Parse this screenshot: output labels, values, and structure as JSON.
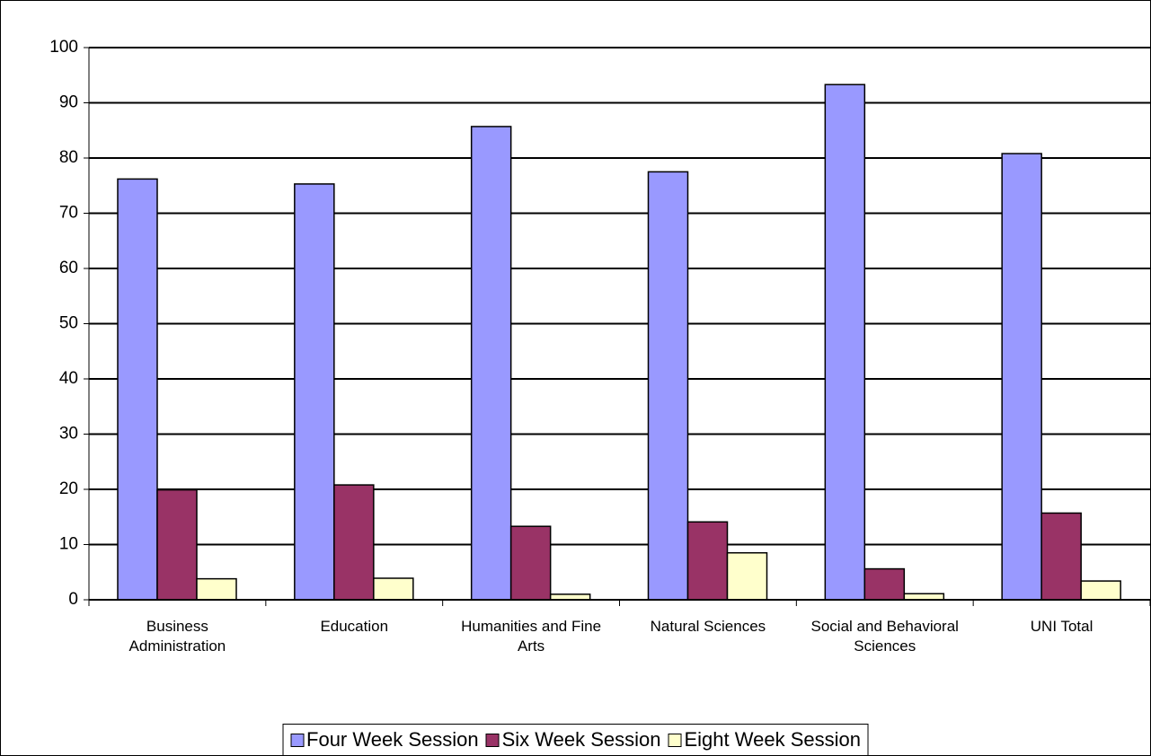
{
  "chart_data": {
    "type": "bar",
    "categories": [
      "Business Administration",
      "Education",
      "Humanities and Fine Arts",
      "Natural Sciences",
      "Social and Behavioral Sciences",
      "UNI Total"
    ],
    "series": [
      {
        "name": "Four Week Session",
        "color": "#9999ff",
        "values": [
          76.2,
          75.3,
          85.7,
          77.5,
          93.3,
          80.8
        ]
      },
      {
        "name": "Six Week Session",
        "color": "#993366",
        "values": [
          19.9,
          20.8,
          13.3,
          14.1,
          5.6,
          15.7
        ]
      },
      {
        "name": "Eight Week Session",
        "color": "#ffffcc",
        "values": [
          3.8,
          3.9,
          1.0,
          8.5,
          1.1,
          3.4
        ]
      }
    ],
    "ylim": [
      0,
      100
    ],
    "yticks": [
      0,
      10,
      20,
      30,
      40,
      50,
      60,
      70,
      80,
      90,
      100
    ],
    "grid": true,
    "legend": "bottom"
  }
}
